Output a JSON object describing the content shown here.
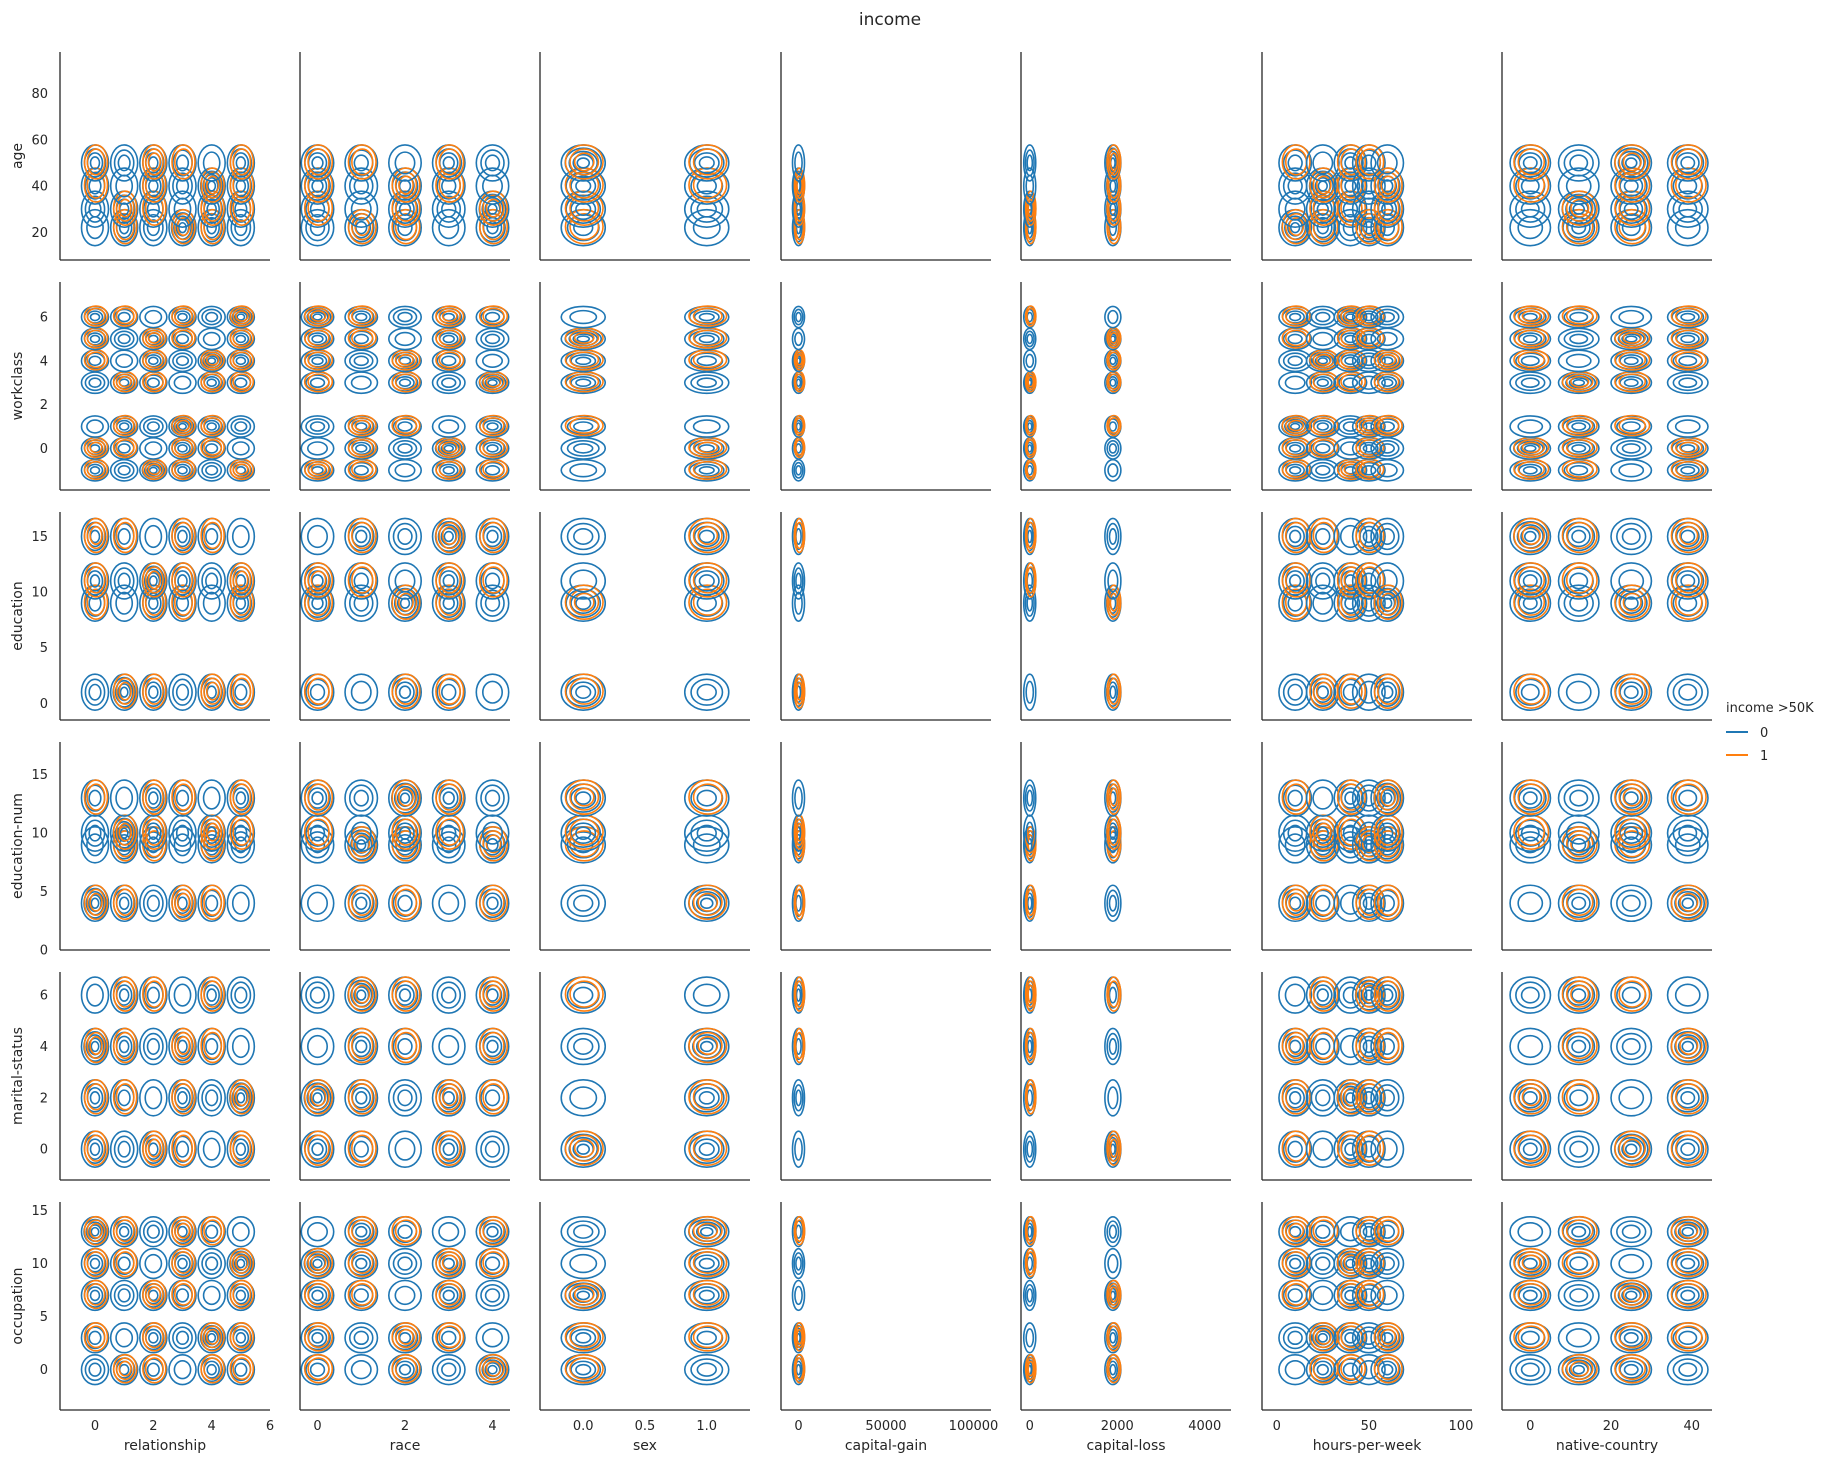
{
  "chart_data": {
    "type": "kde-contour-pairgrid",
    "title": "income",
    "legend": {
      "title": "income >50K",
      "entries": [
        "0",
        "1"
      ],
      "position": "right-center"
    },
    "colors": {
      "0": "#1f77b4",
      "1": "#ff7f0e"
    },
    "x_vars": [
      "relationship",
      "race",
      "sex",
      "capital-gain",
      "capital-loss",
      "hours-per-week",
      "native-country"
    ],
    "y_vars": [
      "age",
      "workclass",
      "education",
      "education-num",
      "marital-status",
      "occupation"
    ],
    "x_axes": {
      "relationship": {
        "range": [
          -1.2,
          6
        ],
        "ticks": [
          0,
          2,
          4,
          6
        ],
        "tick_labels": [
          "0",
          "2",
          "4",
          "6"
        ]
      },
      "race": {
        "range": [
          -0.4,
          4.4
        ],
        "ticks": [
          0,
          2,
          4
        ],
        "tick_labels": [
          "0",
          "2",
          "4"
        ]
      },
      "sex": {
        "range": [
          -0.35,
          1.35
        ],
        "ticks": [
          0.0,
          0.5,
          1.0
        ],
        "tick_labels": [
          "0.0",
          "0.5",
          "1.0"
        ]
      },
      "capital-gain": {
        "range": [
          -10000,
          110000
        ],
        "ticks": [
          0,
          50000,
          100000
        ],
        "tick_labels": [
          "0",
          "50000",
          "100000"
        ]
      },
      "capital-loss": {
        "range": [
          -200,
          4600
        ],
        "ticks": [
          0,
          2000,
          4000
        ],
        "tick_labels": [
          "0",
          "2000",
          "4000"
        ]
      },
      "hours-per-week": {
        "range": [
          -8,
          106
        ],
        "ticks": [
          0,
          50,
          100
        ],
        "tick_labels": [
          "0",
          "50",
          "100"
        ]
      },
      "native-country": {
        "range": [
          -7,
          45
        ],
        "ticks": [
          0,
          20,
          40
        ],
        "tick_labels": [
          "0",
          "20",
          "40"
        ]
      }
    },
    "y_axes": {
      "age": {
        "range": [
          8,
          98
        ],
        "ticks": [
          20,
          40,
          60,
          80
        ],
        "tick_labels": [
          "20",
          "40",
          "60",
          "80"
        ]
      },
      "workclass": {
        "range": [
          -1.9,
          7.6
        ],
        "ticks": [
          0,
          2,
          4,
          6
        ],
        "tick_labels": [
          "0",
          "2",
          "4",
          "6"
        ]
      },
      "education": {
        "range": [
          -1.5,
          17.2
        ],
        "ticks": [
          0,
          5,
          10,
          15
        ],
        "tick_labels": [
          "0",
          "5",
          "10",
          "15"
        ]
      },
      "education-num": {
        "range": [
          0,
          17.8
        ],
        "ticks": [
          0,
          5,
          10,
          15
        ],
        "tick_labels": [
          "0",
          "5",
          "10",
          "15"
        ]
      },
      "marital-status": {
        "range": [
          -1.2,
          6.9
        ],
        "ticks": [
          0,
          2,
          4,
          6
        ],
        "tick_labels": [
          "0",
          "2",
          "4",
          "6"
        ]
      },
      "occupation": {
        "range": [
          -3.8,
          15.8
        ],
        "ticks": [
          0,
          5,
          10,
          15
        ],
        "tick_labels": [
          "0",
          "5",
          "10",
          "15"
        ]
      }
    },
    "x_centers": {
      "relationship": [
        0,
        1,
        2,
        3,
        4,
        5
      ],
      "race": [
        0,
        1,
        2,
        3,
        4
      ],
      "sex": [
        0,
        1
      ],
      "capital-gain": [
        0
      ],
      "capital-loss": [
        0,
        1900
      ],
      "hours-per-week": [
        10,
        25,
        40,
        50,
        60
      ],
      "native-country": [
        0,
        12,
        25,
        39
      ]
    },
    "y_centers": {
      "age": [
        22,
        30,
        40,
        50
      ],
      "workclass": [
        -1,
        0,
        1,
        3,
        4,
        5,
        6
      ],
      "education": [
        1,
        9,
        11,
        15
      ],
      "education-num": [
        4,
        9,
        10,
        13
      ],
      "marital-status": [
        0,
        2,
        4,
        6
      ],
      "occupation": [
        0,
        3,
        7,
        10,
        13
      ]
    },
    "grid": false
  }
}
